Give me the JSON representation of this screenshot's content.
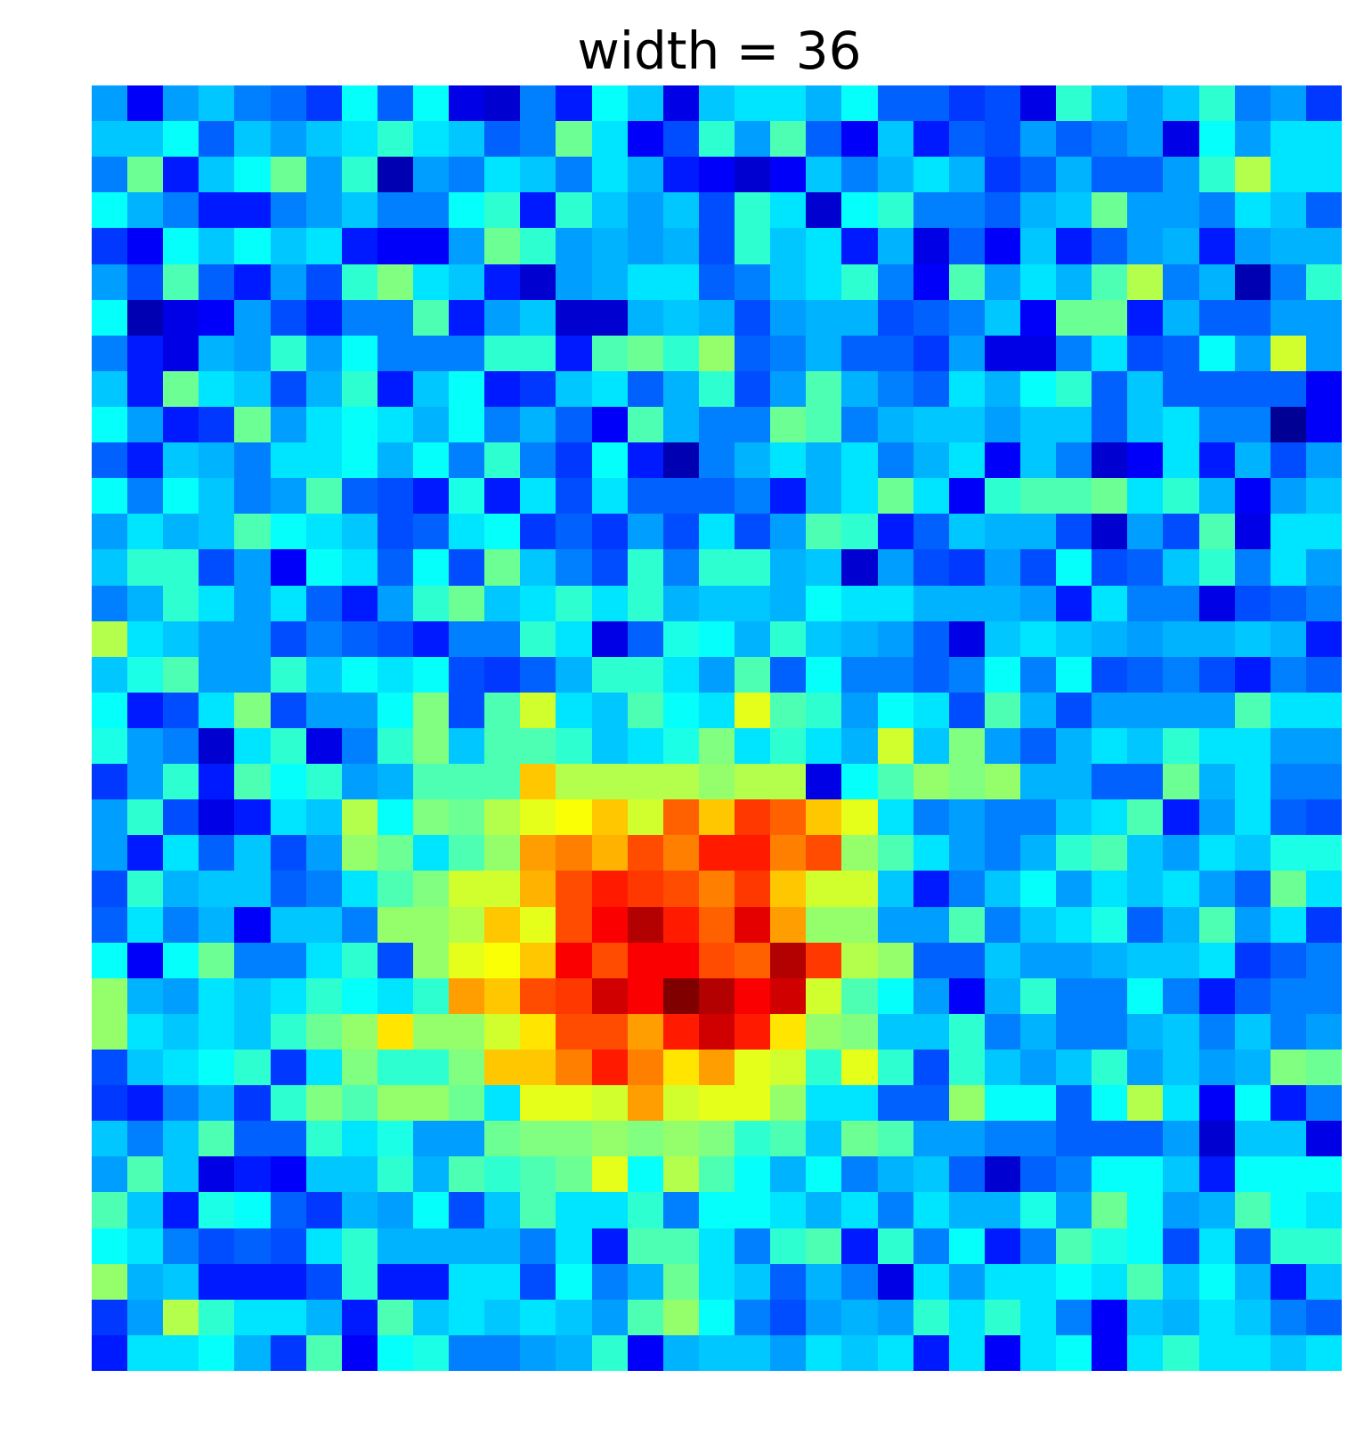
{
  "chart_data": {
    "type": "heatmap",
    "title": "width = 36",
    "xlabel": "",
    "ylabel": "",
    "axes_visible": false,
    "grid": false,
    "legend": "none",
    "colormap": "jet",
    "value_range": [
      0,
      1
    ],
    "rows": 36,
    "cols": 35,
    "values": [
      [
        0.28,
        0.12,
        0.28,
        0.32,
        0.25,
        0.23,
        0.18,
        0.38,
        0.22,
        0.38,
        0.1,
        0.08,
        0.25,
        0.15,
        0.38,
        0.32,
        0.1,
        0.32,
        0.35,
        0.35,
        0.3,
        0.38,
        0.22,
        0.22,
        0.18,
        0.2,
        0.1,
        0.42,
        0.32,
        0.28,
        0.32,
        0.42,
        0.25,
        0.28,
        0.18
      ],
      [
        0.32,
        0.32,
        0.38,
        0.22,
        0.32,
        0.28,
        0.32,
        0.35,
        0.42,
        0.35,
        0.32,
        0.22,
        0.25,
        0.48,
        0.35,
        0.12,
        0.2,
        0.42,
        0.28,
        0.45,
        0.22,
        0.12,
        0.32,
        0.15,
        0.22,
        0.2,
        0.28,
        0.22,
        0.25,
        0.28,
        0.1,
        0.38,
        0.28,
        0.35,
        0.35
      ],
      [
        0.25,
        0.48,
        0.15,
        0.32,
        0.38,
        0.48,
        0.28,
        0.42,
        0.05,
        0.28,
        0.25,
        0.35,
        0.32,
        0.25,
        0.35,
        0.3,
        0.15,
        0.12,
        0.08,
        0.12,
        0.32,
        0.25,
        0.3,
        0.35,
        0.3,
        0.18,
        0.22,
        0.3,
        0.22,
        0.22,
        0.28,
        0.42,
        0.55,
        0.35,
        0.35
      ],
      [
        0.38,
        0.3,
        0.25,
        0.15,
        0.15,
        0.25,
        0.28,
        0.32,
        0.25,
        0.25,
        0.38,
        0.42,
        0.15,
        0.42,
        0.32,
        0.28,
        0.32,
        0.2,
        0.42,
        0.35,
        0.08,
        0.38,
        0.42,
        0.25,
        0.25,
        0.22,
        0.3,
        0.32,
        0.48,
        0.28,
        0.28,
        0.25,
        0.35,
        0.32,
        0.22
      ],
      [
        0.18,
        0.12,
        0.38,
        0.32,
        0.38,
        0.32,
        0.35,
        0.15,
        0.12,
        0.12,
        0.28,
        0.48,
        0.42,
        0.28,
        0.3,
        0.28,
        0.3,
        0.2,
        0.42,
        0.32,
        0.35,
        0.15,
        0.3,
        0.1,
        0.22,
        0.12,
        0.32,
        0.15,
        0.22,
        0.28,
        0.3,
        0.15,
        0.28,
        0.3,
        0.3
      ],
      [
        0.28,
        0.2,
        0.45,
        0.22,
        0.15,
        0.28,
        0.2,
        0.42,
        0.5,
        0.35,
        0.32,
        0.15,
        0.08,
        0.28,
        0.3,
        0.35,
        0.35,
        0.22,
        0.25,
        0.32,
        0.35,
        0.42,
        0.25,
        0.12,
        0.45,
        0.28,
        0.35,
        0.3,
        0.45,
        0.55,
        0.25,
        0.3,
        0.05,
        0.25,
        0.42
      ],
      [
        0.38,
        0.05,
        0.1,
        0.12,
        0.28,
        0.2,
        0.15,
        0.25,
        0.25,
        0.45,
        0.15,
        0.28,
        0.32,
        0.08,
        0.08,
        0.3,
        0.32,
        0.3,
        0.2,
        0.28,
        0.3,
        0.3,
        0.2,
        0.22,
        0.25,
        0.32,
        0.12,
        0.48,
        0.48,
        0.15,
        0.3,
        0.22,
        0.22,
        0.28,
        0.28
      ],
      [
        0.25,
        0.15,
        0.1,
        0.3,
        0.28,
        0.42,
        0.28,
        0.38,
        0.25,
        0.25,
        0.25,
        0.42,
        0.42,
        0.15,
        0.45,
        0.48,
        0.42,
        0.52,
        0.22,
        0.25,
        0.3,
        0.22,
        0.22,
        0.18,
        0.28,
        0.1,
        0.1,
        0.25,
        0.35,
        0.2,
        0.22,
        0.38,
        0.28,
        0.58,
        0.28
      ],
      [
        0.32,
        0.15,
        0.48,
        0.35,
        0.32,
        0.2,
        0.3,
        0.42,
        0.15,
        0.32,
        0.38,
        0.15,
        0.18,
        0.32,
        0.35,
        0.22,
        0.3,
        0.42,
        0.2,
        0.28,
        0.45,
        0.3,
        0.25,
        0.22,
        0.35,
        0.3,
        0.38,
        0.42,
        0.22,
        0.32,
        0.22,
        0.22,
        0.22,
        0.22,
        0.12
      ],
      [
        0.38,
        0.28,
        0.15,
        0.18,
        0.48,
        0.28,
        0.35,
        0.38,
        0.35,
        0.3,
        0.38,
        0.25,
        0.3,
        0.22,
        0.12,
        0.45,
        0.3,
        0.25,
        0.25,
        0.48,
        0.45,
        0.25,
        0.3,
        0.32,
        0.32,
        0.28,
        0.32,
        0.32,
        0.22,
        0.32,
        0.35,
        0.25,
        0.25,
        0.02,
        0.12
      ],
      [
        0.22,
        0.15,
        0.32,
        0.3,
        0.25,
        0.35,
        0.35,
        0.38,
        0.3,
        0.38,
        0.25,
        0.42,
        0.25,
        0.18,
        0.38,
        0.15,
        0.05,
        0.25,
        0.3,
        0.35,
        0.3,
        0.35,
        0.25,
        0.3,
        0.35,
        0.12,
        0.32,
        0.25,
        0.08,
        0.12,
        0.35,
        0.15,
        0.3,
        0.2,
        0.28
      ],
      [
        0.38,
        0.25,
        0.38,
        0.32,
        0.25,
        0.28,
        0.45,
        0.22,
        0.2,
        0.15,
        0.4,
        0.15,
        0.35,
        0.2,
        0.35,
        0.22,
        0.22,
        0.22,
        0.25,
        0.15,
        0.3,
        0.35,
        0.48,
        0.35,
        0.12,
        0.42,
        0.45,
        0.45,
        0.48,
        0.35,
        0.42,
        0.3,
        0.12,
        0.28,
        0.32
      ],
      [
        0.28,
        0.35,
        0.3,
        0.32,
        0.45,
        0.38,
        0.35,
        0.32,
        0.2,
        0.22,
        0.35,
        0.38,
        0.18,
        0.22,
        0.18,
        0.28,
        0.2,
        0.35,
        0.2,
        0.28,
        0.45,
        0.42,
        0.15,
        0.22,
        0.32,
        0.3,
        0.3,
        0.2,
        0.08,
        0.28,
        0.2,
        0.45,
        0.1,
        0.35,
        0.35
      ],
      [
        0.32,
        0.42,
        0.42,
        0.2,
        0.28,
        0.12,
        0.38,
        0.35,
        0.22,
        0.38,
        0.2,
        0.48,
        0.32,
        0.25,
        0.2,
        0.42,
        0.25,
        0.42,
        0.42,
        0.3,
        0.32,
        0.08,
        0.28,
        0.2,
        0.18,
        0.28,
        0.2,
        0.38,
        0.2,
        0.22,
        0.32,
        0.42,
        0.25,
        0.35,
        0.28
      ],
      [
        0.25,
        0.3,
        0.42,
        0.35,
        0.28,
        0.35,
        0.22,
        0.15,
        0.28,
        0.42,
        0.48,
        0.32,
        0.35,
        0.42,
        0.35,
        0.42,
        0.3,
        0.32,
        0.32,
        0.3,
        0.38,
        0.35,
        0.35,
        0.3,
        0.3,
        0.3,
        0.28,
        0.15,
        0.35,
        0.25,
        0.25,
        0.1,
        0.2,
        0.22,
        0.25
      ],
      [
        0.55,
        0.35,
        0.32,
        0.28,
        0.28,
        0.2,
        0.25,
        0.22,
        0.2,
        0.15,
        0.25,
        0.25,
        0.42,
        0.35,
        0.1,
        0.22,
        0.4,
        0.38,
        0.3,
        0.42,
        0.32,
        0.3,
        0.28,
        0.22,
        0.1,
        0.32,
        0.35,
        0.32,
        0.3,
        0.28,
        0.3,
        0.3,
        0.32,
        0.3,
        0.15
      ],
      [
        0.32,
        0.4,
        0.45,
        0.28,
        0.28,
        0.42,
        0.32,
        0.38,
        0.35,
        0.38,
        0.2,
        0.18,
        0.22,
        0.3,
        0.42,
        0.42,
        0.35,
        0.28,
        0.45,
        0.22,
        0.38,
        0.25,
        0.25,
        0.22,
        0.25,
        0.38,
        0.25,
        0.38,
        0.2,
        0.22,
        0.25,
        0.2,
        0.15,
        0.25,
        0.22
      ],
      [
        0.38,
        0.15,
        0.2,
        0.35,
        0.5,
        0.2,
        0.28,
        0.28,
        0.38,
        0.5,
        0.2,
        0.45,
        0.58,
        0.35,
        0.32,
        0.45,
        0.38,
        0.35,
        0.6,
        0.45,
        0.42,
        0.28,
        0.38,
        0.35,
        0.2,
        0.45,
        0.3,
        0.2,
        0.28,
        0.28,
        0.28,
        0.28,
        0.45,
        0.35,
        0.35
      ],
      [
        0.4,
        0.28,
        0.25,
        0.08,
        0.35,
        0.42,
        0.1,
        0.25,
        0.42,
        0.5,
        0.32,
        0.45,
        0.45,
        0.42,
        0.32,
        0.35,
        0.4,
        0.5,
        0.35,
        0.42,
        0.35,
        0.3,
        0.58,
        0.32,
        0.5,
        0.28,
        0.22,
        0.3,
        0.35,
        0.32,
        0.42,
        0.35,
        0.35,
        0.28,
        0.28
      ],
      [
        0.18,
        0.28,
        0.42,
        0.15,
        0.45,
        0.38,
        0.42,
        0.28,
        0.3,
        0.45,
        0.45,
        0.45,
        0.68,
        0.55,
        0.55,
        0.55,
        0.55,
        0.52,
        0.55,
        0.55,
        0.1,
        0.38,
        0.45,
        0.52,
        0.5,
        0.52,
        0.3,
        0.3,
        0.22,
        0.22,
        0.48,
        0.3,
        0.35,
        0.25,
        0.25
      ],
      [
        0.28,
        0.42,
        0.2,
        0.1,
        0.15,
        0.35,
        0.32,
        0.55,
        0.38,
        0.5,
        0.48,
        0.55,
        0.6,
        0.62,
        0.68,
        0.58,
        0.78,
        0.68,
        0.82,
        0.78,
        0.68,
        0.6,
        0.35,
        0.25,
        0.28,
        0.25,
        0.25,
        0.32,
        0.35,
        0.45,
        0.15,
        0.28,
        0.35,
        0.22,
        0.2
      ],
      [
        0.28,
        0.15,
        0.35,
        0.22,
        0.32,
        0.2,
        0.28,
        0.52,
        0.48,
        0.35,
        0.45,
        0.52,
        0.72,
        0.75,
        0.7,
        0.8,
        0.75,
        0.85,
        0.85,
        0.75,
        0.8,
        0.52,
        0.45,
        0.35,
        0.28,
        0.25,
        0.3,
        0.42,
        0.45,
        0.32,
        0.28,
        0.35,
        0.32,
        0.4,
        0.4
      ],
      [
        0.2,
        0.42,
        0.3,
        0.32,
        0.32,
        0.22,
        0.25,
        0.35,
        0.45,
        0.5,
        0.58,
        0.58,
        0.7,
        0.8,
        0.85,
        0.82,
        0.8,
        0.75,
        0.82,
        0.68,
        0.58,
        0.58,
        0.32,
        0.15,
        0.25,
        0.32,
        0.38,
        0.28,
        0.35,
        0.32,
        0.35,
        0.28,
        0.22,
        0.48,
        0.35
      ],
      [
        0.22,
        0.35,
        0.25,
        0.3,
        0.12,
        0.32,
        0.32,
        0.25,
        0.52,
        0.52,
        0.55,
        0.68,
        0.6,
        0.8,
        0.88,
        0.95,
        0.85,
        0.78,
        0.9,
        0.72,
        0.52,
        0.52,
        0.28,
        0.28,
        0.45,
        0.25,
        0.32,
        0.35,
        0.4,
        0.22,
        0.3,
        0.45,
        0.28,
        0.35,
        0.18
      ],
      [
        0.38,
        0.12,
        0.38,
        0.48,
        0.25,
        0.25,
        0.35,
        0.42,
        0.2,
        0.52,
        0.6,
        0.62,
        0.68,
        0.88,
        0.8,
        0.88,
        0.88,
        0.8,
        0.78,
        0.95,
        0.82,
        0.55,
        0.52,
        0.22,
        0.22,
        0.32,
        0.28,
        0.28,
        0.3,
        0.32,
        0.32,
        0.35,
        0.18,
        0.22,
        0.25
      ],
      [
        0.52,
        0.3,
        0.28,
        0.35,
        0.32,
        0.35,
        0.42,
        0.38,
        0.35,
        0.42,
        0.72,
        0.68,
        0.8,
        0.82,
        0.92,
        0.88,
        1.0,
        0.95,
        0.88,
        0.92,
        0.58,
        0.45,
        0.38,
        0.28,
        0.12,
        0.3,
        0.42,
        0.25,
        0.25,
        0.38,
        0.25,
        0.15,
        0.22,
        0.25,
        0.25
      ],
      [
        0.52,
        0.35,
        0.32,
        0.35,
        0.32,
        0.42,
        0.48,
        0.52,
        0.65,
        0.52,
        0.52,
        0.58,
        0.65,
        0.8,
        0.8,
        0.72,
        0.85,
        0.92,
        0.85,
        0.65,
        0.52,
        0.5,
        0.32,
        0.32,
        0.42,
        0.25,
        0.3,
        0.25,
        0.25,
        0.3,
        0.32,
        0.25,
        0.32,
        0.25,
        0.28
      ],
      [
        0.2,
        0.32,
        0.35,
        0.38,
        0.42,
        0.18,
        0.35,
        0.5,
        0.42,
        0.42,
        0.5,
        0.68,
        0.68,
        0.75,
        0.85,
        0.75,
        0.65,
        0.72,
        0.6,
        0.58,
        0.42,
        0.6,
        0.42,
        0.2,
        0.42,
        0.32,
        0.28,
        0.32,
        0.42,
        0.28,
        0.32,
        0.28,
        0.3,
        0.5,
        0.48
      ],
      [
        0.18,
        0.15,
        0.25,
        0.3,
        0.18,
        0.42,
        0.5,
        0.45,
        0.52,
        0.52,
        0.48,
        0.35,
        0.6,
        0.6,
        0.58,
        0.72,
        0.58,
        0.6,
        0.6,
        0.52,
        0.35,
        0.35,
        0.22,
        0.22,
        0.52,
        0.38,
        0.38,
        0.22,
        0.38,
        0.55,
        0.35,
        0.12,
        0.38,
        0.15,
        0.25
      ],
      [
        0.32,
        0.25,
        0.32,
        0.45,
        0.22,
        0.22,
        0.42,
        0.35,
        0.4,
        0.28,
        0.28,
        0.48,
        0.5,
        0.5,
        0.52,
        0.5,
        0.52,
        0.5,
        0.42,
        0.45,
        0.32,
        0.48,
        0.45,
        0.28,
        0.28,
        0.25,
        0.25,
        0.22,
        0.22,
        0.22,
        0.28,
        0.08,
        0.32,
        0.32,
        0.1
      ],
      [
        0.28,
        0.45,
        0.32,
        0.1,
        0.15,
        0.12,
        0.32,
        0.32,
        0.42,
        0.3,
        0.45,
        0.42,
        0.45,
        0.48,
        0.6,
        0.38,
        0.55,
        0.45,
        0.38,
        0.3,
        0.38,
        0.25,
        0.3,
        0.32,
        0.22,
        0.08,
        0.22,
        0.25,
        0.38,
        0.38,
        0.32,
        0.15,
        0.38,
        0.38,
        0.38
      ],
      [
        0.45,
        0.32,
        0.15,
        0.4,
        0.38,
        0.22,
        0.18,
        0.3,
        0.28,
        0.38,
        0.2,
        0.32,
        0.45,
        0.35,
        0.35,
        0.42,
        0.25,
        0.38,
        0.38,
        0.35,
        0.3,
        0.35,
        0.25,
        0.35,
        0.3,
        0.3,
        0.4,
        0.28,
        0.48,
        0.38,
        0.28,
        0.3,
        0.45,
        0.38,
        0.35
      ],
      [
        0.38,
        0.35,
        0.25,
        0.2,
        0.22,
        0.2,
        0.35,
        0.42,
        0.3,
        0.3,
        0.3,
        0.3,
        0.25,
        0.35,
        0.15,
        0.45,
        0.45,
        0.35,
        0.25,
        0.42,
        0.45,
        0.15,
        0.42,
        0.25,
        0.38,
        0.15,
        0.25,
        0.45,
        0.4,
        0.38,
        0.2,
        0.35,
        0.22,
        0.42,
        0.42
      ],
      [
        0.52,
        0.3,
        0.32,
        0.15,
        0.15,
        0.15,
        0.2,
        0.42,
        0.15,
        0.15,
        0.35,
        0.35,
        0.2,
        0.38,
        0.25,
        0.3,
        0.48,
        0.35,
        0.32,
        0.22,
        0.3,
        0.25,
        0.1,
        0.35,
        0.28,
        0.35,
        0.35,
        0.38,
        0.35,
        0.45,
        0.32,
        0.38,
        0.3,
        0.15,
        0.32
      ],
      [
        0.18,
        0.28,
        0.55,
        0.42,
        0.35,
        0.35,
        0.3,
        0.15,
        0.45,
        0.32,
        0.35,
        0.32,
        0.35,
        0.32,
        0.28,
        0.45,
        0.52,
        0.38,
        0.25,
        0.2,
        0.28,
        0.3,
        0.28,
        0.42,
        0.35,
        0.42,
        0.35,
        0.25,
        0.12,
        0.32,
        0.3,
        0.35,
        0.32,
        0.25,
        0.22
      ],
      [
        0.15,
        0.35,
        0.35,
        0.38,
        0.3,
        0.18,
        0.45,
        0.12,
        0.38,
        0.4,
        0.25,
        0.25,
        0.28,
        0.3,
        0.42,
        0.12,
        0.3,
        0.32,
        0.32,
        0.28,
        0.35,
        0.32,
        0.35,
        0.15,
        0.35,
        0.12,
        0.35,
        0.38,
        0.12,
        0.35,
        0.42,
        0.35,
        0.35,
        0.32,
        0.35
      ]
    ]
  }
}
